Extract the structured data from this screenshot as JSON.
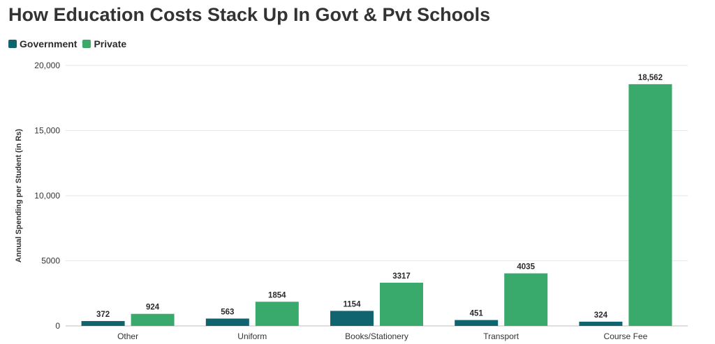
{
  "chart_data": {
    "type": "bar",
    "title": "How Education Costs Stack Up In Govt & Pvt Schools",
    "xlabel": "",
    "ylabel": "Annual Spending per Student (in Rs)",
    "ylim": [
      0,
      20000
    ],
    "yticks": [
      0,
      5000,
      10000,
      15000,
      20000
    ],
    "ytick_labels": [
      "0",
      "5000",
      "10,000",
      "15,000",
      "20,000"
    ],
    "grid": true,
    "legend_position": "top-left",
    "categories": [
      "Other",
      "Uniform",
      "Books/Stationery",
      "Transport",
      "Course Fee"
    ],
    "series": [
      {
        "name": "Government",
        "color": "#0f6470",
        "values": [
          372,
          563,
          1154,
          451,
          324
        ],
        "labels": [
          "372",
          "563",
          "1154",
          "451",
          "324"
        ]
      },
      {
        "name": "Private",
        "color": "#3aaa6c",
        "values": [
          924,
          1854,
          3317,
          4035,
          18562
        ],
        "labels": [
          "924",
          "1854",
          "3317",
          "4035",
          "18,562"
        ]
      }
    ]
  }
}
